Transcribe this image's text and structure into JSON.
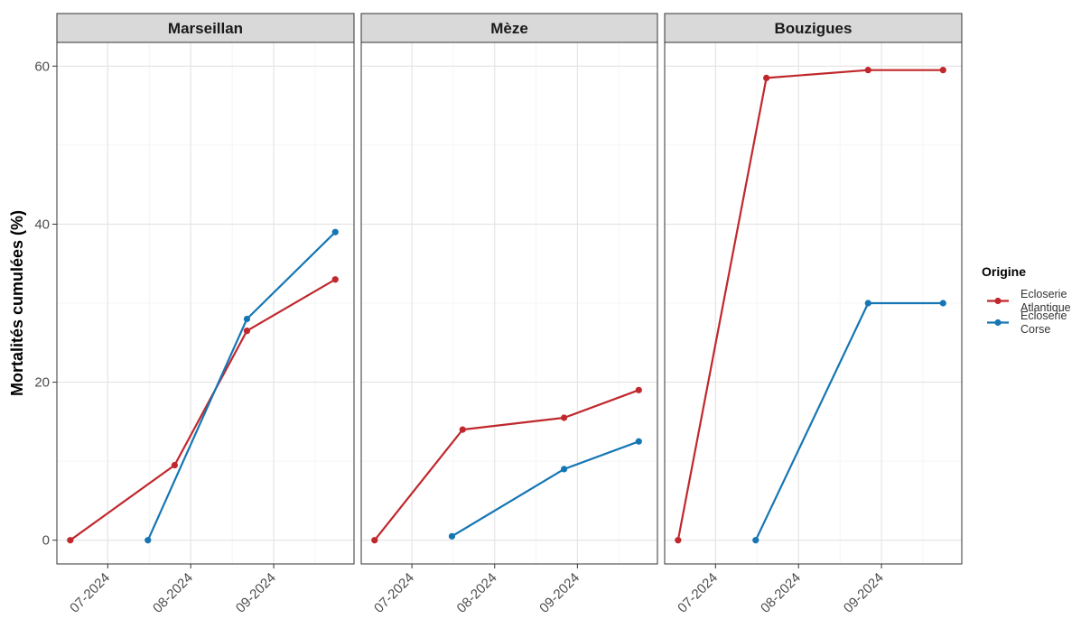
{
  "chart_data": {
    "type": "line",
    "ylabel": "Mortalités cumulées (%)",
    "xlabel": "",
    "ylim": [
      -3,
      63
    ],
    "yticks": [
      0,
      20,
      40,
      60
    ],
    "xlim": [
      "2024-06-12",
      "2024-10-01"
    ],
    "xticks": [
      {
        "date": "2024-07-01",
        "label": "07-2024"
      },
      {
        "date": "2024-08-01",
        "label": "08-2024"
      },
      {
        "date": "2024-09-01",
        "label": "09-2024"
      }
    ],
    "grid": true,
    "legend": {
      "title": "Origine",
      "position": "right",
      "entries": [
        {
          "key": "atlantique",
          "lines": [
            "Ecloserie",
            "Atlantique"
          ],
          "color": "#c0282d"
        },
        {
          "key": "corse",
          "lines": [
            "Ecloserie",
            "Corse"
          ],
          "color": "#1576b4"
        }
      ]
    },
    "panels": [
      {
        "title": "Marseillan",
        "series": [
          {
            "key": "atlantique",
            "points": [
              {
                "x": "2024-06-17",
                "y": 0
              },
              {
                "x": "2024-07-26",
                "y": 9.5
              },
              {
                "x": "2024-08-22",
                "y": 26.5
              },
              {
                "x": "2024-09-24",
                "y": 33
              }
            ]
          },
          {
            "key": "corse",
            "points": [
              {
                "x": "2024-07-16",
                "y": 0
              },
              {
                "x": "2024-08-22",
                "y": 28
              },
              {
                "x": "2024-09-24",
                "y": 39
              }
            ]
          }
        ]
      },
      {
        "title": "Mèze",
        "series": [
          {
            "key": "atlantique",
            "points": [
              {
                "x": "2024-06-17",
                "y": 0
              },
              {
                "x": "2024-07-20",
                "y": 14
              },
              {
                "x": "2024-08-27",
                "y": 15.5
              },
              {
                "x": "2024-09-24",
                "y": 19
              }
            ]
          },
          {
            "key": "corse",
            "points": [
              {
                "x": "2024-07-16",
                "y": 0.5
              },
              {
                "x": "2024-08-27",
                "y": 9
              },
              {
                "x": "2024-09-24",
                "y": 12.5
              }
            ]
          }
        ]
      },
      {
        "title": "Bouzigues",
        "series": [
          {
            "key": "atlantique",
            "points": [
              {
                "x": "2024-06-17",
                "y": 0
              },
              {
                "x": "2024-07-20",
                "y": 58.5
              },
              {
                "x": "2024-08-27",
                "y": 59.5
              },
              {
                "x": "2024-09-24",
                "y": 59.5
              }
            ]
          },
          {
            "key": "corse",
            "points": [
              {
                "x": "2024-07-16",
                "y": 0
              },
              {
                "x": "2024-08-27",
                "y": 30
              },
              {
                "x": "2024-09-24",
                "y": 30
              }
            ]
          }
        ]
      }
    ]
  }
}
